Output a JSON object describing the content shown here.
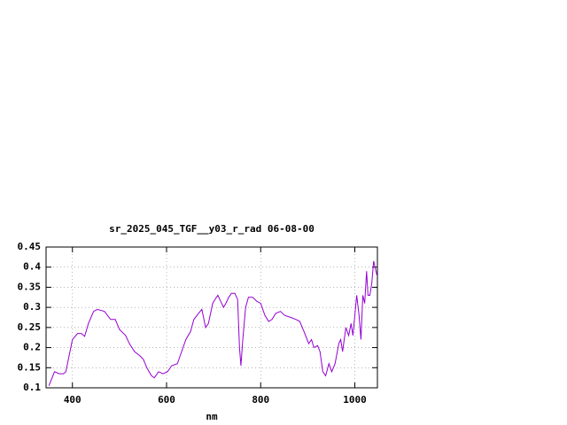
{
  "chart_data": {
    "type": "line",
    "title": "sr_2025_045_TGF__y03_r_rad 06-08-00",
    "xlabel": "nm",
    "color": "#9400d3",
    "grid": true,
    "xlim": [
      344,
      1048
    ],
    "ylim": [
      0.1,
      0.45
    ],
    "xticks": [
      400,
      600,
      800,
      1000
    ],
    "yticks": [
      0.1,
      0.15,
      0.2,
      0.25,
      0.3,
      0.35,
      0.4,
      0.45
    ],
    "x": [
      350,
      362,
      372,
      381,
      386,
      400,
      411,
      419,
      426,
      434,
      445,
      453,
      468,
      481,
      491,
      500,
      513,
      521,
      532,
      543,
      551,
      558,
      568,
      574,
      583,
      592,
      602,
      611,
      623,
      632,
      641,
      651,
      658,
      668,
      675,
      683,
      689,
      698,
      706,
      709,
      717,
      721,
      726,
      732,
      738,
      745,
      751,
      755,
      758,
      762,
      768,
      774,
      783,
      792,
      800,
      809,
      817,
      824,
      832,
      842,
      851,
      864,
      875,
      883,
      892,
      902,
      908,
      913,
      921,
      926,
      932,
      938,
      945,
      951,
      958,
      966,
      970,
      974,
      981,
      987,
      992,
      996,
      1004,
      1009,
      1013,
      1017,
      1021,
      1025,
      1028,
      1032,
      1036,
      1040,
      1043,
      1047
    ],
    "values": [
      0.105,
      0.14,
      0.135,
      0.135,
      0.14,
      0.22,
      0.235,
      0.235,
      0.228,
      0.26,
      0.29,
      0.295,
      0.29,
      0.27,
      0.27,
      0.245,
      0.23,
      0.21,
      0.19,
      0.18,
      0.17,
      0.15,
      0.13,
      0.125,
      0.14,
      0.135,
      0.14,
      0.155,
      0.16,
      0.19,
      0.22,
      0.24,
      0.27,
      0.285,
      0.295,
      0.25,
      0.26,
      0.31,
      0.325,
      0.33,
      0.31,
      0.3,
      0.31,
      0.325,
      0.335,
      0.335,
      0.32,
      0.2,
      0.155,
      0.22,
      0.3,
      0.325,
      0.325,
      0.315,
      0.31,
      0.28,
      0.265,
      0.27,
      0.285,
      0.29,
      0.28,
      0.275,
      0.27,
      0.265,
      0.24,
      0.21,
      0.22,
      0.2,
      0.205,
      0.19,
      0.14,
      0.13,
      0.16,
      0.14,
      0.16,
      0.21,
      0.22,
      0.19,
      0.25,
      0.23,
      0.26,
      0.23,
      0.33,
      0.28,
      0.22,
      0.33,
      0.31,
      0.39,
      0.33,
      0.33,
      0.36,
      0.415,
      0.4,
      0.38
    ]
  }
}
